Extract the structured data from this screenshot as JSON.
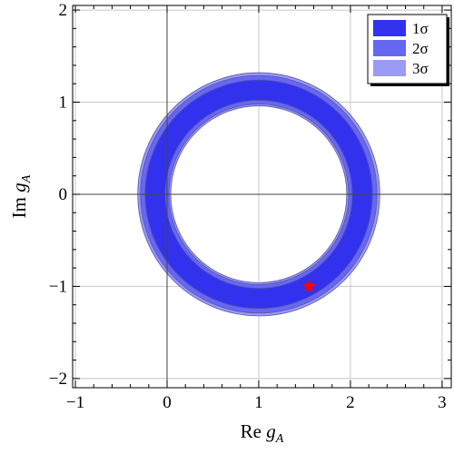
{
  "chart_data": {
    "type": "contour",
    "title": "",
    "xlabel": {
      "main": "Re ",
      "var": "g",
      "sub": "A"
    },
    "ylabel": {
      "main": "Im ",
      "var": "g",
      "sub": "A"
    },
    "xlim": [
      -1.03,
      3.1
    ],
    "ylim": [
      -2.1,
      2.05
    ],
    "xticks": [
      -1,
      0,
      1,
      2,
      3
    ],
    "yticks": [
      -2,
      -1,
      0,
      1,
      2
    ],
    "xtick_labels": [
      "−1",
      "0",
      "1",
      "2",
      "3"
    ],
    "ytick_labels": [
      "−2",
      "−1",
      "0",
      "1",
      "2"
    ],
    "grid": true,
    "legend_position": "top-right",
    "regions": [
      {
        "name": "3σ",
        "shape": "annulus",
        "center": [
          1,
          0
        ],
        "inner_radius": 0.96,
        "outer_radius": 1.32,
        "color": "#9a9af7"
      },
      {
        "name": "2σ",
        "shape": "annulus",
        "center": [
          1,
          0
        ],
        "inner_radius": 0.98,
        "outer_radius": 1.29,
        "color": "#6767f2"
      },
      {
        "name": "1σ",
        "shape": "annulus",
        "center": [
          1,
          0
        ],
        "inner_radius": 1.02,
        "outer_radius": 1.24,
        "color": "#3232ee"
      }
    ],
    "legend_order": [
      "1σ",
      "2σ",
      "3σ"
    ],
    "marker": {
      "x": 1.55,
      "y": -1.0,
      "symbol": "star",
      "color": "#ff0000"
    }
  }
}
